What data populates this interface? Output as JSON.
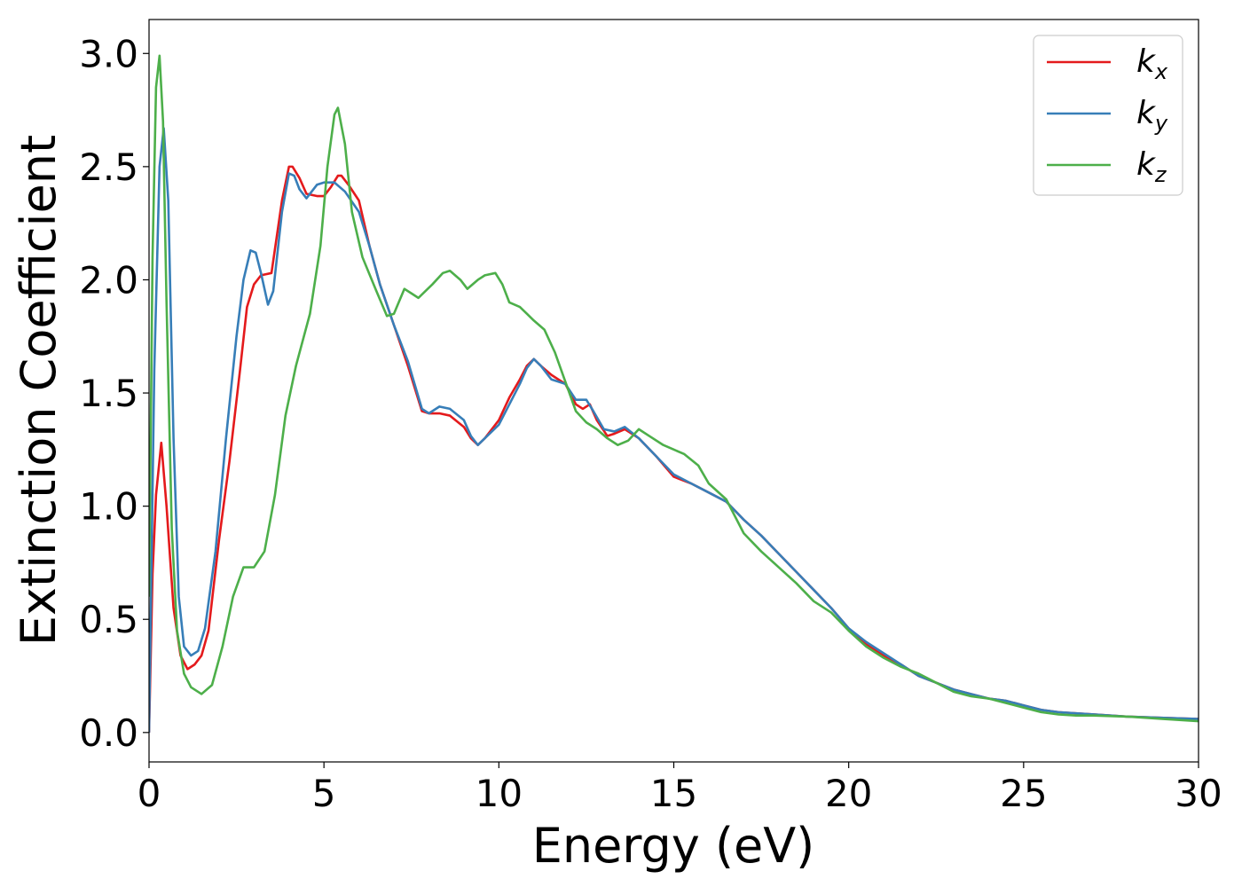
{
  "chart_data": {
    "type": "line",
    "title": "",
    "xlabel": "Energy (eV)",
    "ylabel": "Extinction Coefficient",
    "xlim": [
      0,
      30
    ],
    "ylim": [
      -0.13,
      3.15
    ],
    "xticks": [
      0,
      5,
      10,
      15,
      20,
      25,
      30
    ],
    "xtick_labels": [
      "0",
      "5",
      "10",
      "15",
      "20",
      "25",
      "30"
    ],
    "yticks": [
      0.0,
      0.5,
      1.0,
      1.5,
      2.0,
      2.5,
      3.0
    ],
    "ytick_labels": [
      "0.0",
      "0.5",
      "1.0",
      "1.5",
      "2.0",
      "2.5",
      "3.0"
    ],
    "grid": false,
    "legend_position": "top-right",
    "series": [
      {
        "name": "k_x",
        "label_base": "k",
        "label_sub": "x",
        "color": "#e41a1c",
        "points": [
          [
            0,
            0
          ],
          [
            0.1,
            0.7
          ],
          [
            0.2,
            1.05
          ],
          [
            0.35,
            1.28
          ],
          [
            0.5,
            1.0
          ],
          [
            0.7,
            0.55
          ],
          [
            0.9,
            0.34
          ],
          [
            1.1,
            0.28
          ],
          [
            1.3,
            0.3
          ],
          [
            1.5,
            0.34
          ],
          [
            1.7,
            0.45
          ],
          [
            2.0,
            0.85
          ],
          [
            2.3,
            1.2
          ],
          [
            2.6,
            1.6
          ],
          [
            2.8,
            1.88
          ],
          [
            3.0,
            1.98
          ],
          [
            3.2,
            2.02
          ],
          [
            3.5,
            2.03
          ],
          [
            3.8,
            2.35
          ],
          [
            4.0,
            2.5
          ],
          [
            4.1,
            2.5
          ],
          [
            4.3,
            2.45
          ],
          [
            4.5,
            2.38
          ],
          [
            4.8,
            2.37
          ],
          [
            5.0,
            2.37
          ],
          [
            5.2,
            2.41
          ],
          [
            5.4,
            2.46
          ],
          [
            5.5,
            2.46
          ],
          [
            5.7,
            2.42
          ],
          [
            6.0,
            2.35
          ],
          [
            6.3,
            2.15
          ],
          [
            6.6,
            1.98
          ],
          [
            7.0,
            1.8
          ],
          [
            7.4,
            1.62
          ],
          [
            7.8,
            1.42
          ],
          [
            8.0,
            1.41
          ],
          [
            8.3,
            1.41
          ],
          [
            8.6,
            1.4
          ],
          [
            9.0,
            1.35
          ],
          [
            9.2,
            1.3
          ],
          [
            9.4,
            1.27
          ],
          [
            9.6,
            1.3
          ],
          [
            10.0,
            1.38
          ],
          [
            10.3,
            1.48
          ],
          [
            10.6,
            1.56
          ],
          [
            10.8,
            1.62
          ],
          [
            11.0,
            1.65
          ],
          [
            11.2,
            1.62
          ],
          [
            11.5,
            1.58
          ],
          [
            11.9,
            1.54
          ],
          [
            12.2,
            1.45
          ],
          [
            12.4,
            1.43
          ],
          [
            12.6,
            1.45
          ],
          [
            12.8,
            1.38
          ],
          [
            13.1,
            1.31
          ],
          [
            13.3,
            1.32
          ],
          [
            13.6,
            1.34
          ],
          [
            14.0,
            1.3
          ],
          [
            14.5,
            1.22
          ],
          [
            15.0,
            1.13
          ],
          [
            15.5,
            1.1
          ],
          [
            16.0,
            1.06
          ],
          [
            16.5,
            1.02
          ],
          [
            17.0,
            0.94
          ],
          [
            17.5,
            0.87
          ],
          [
            18.0,
            0.79
          ],
          [
            18.5,
            0.71
          ],
          [
            19.0,
            0.63
          ],
          [
            19.5,
            0.55
          ],
          [
            20.0,
            0.46
          ],
          [
            20.5,
            0.39
          ],
          [
            21.0,
            0.34
          ],
          [
            21.5,
            0.3
          ],
          [
            22.0,
            0.25
          ],
          [
            22.5,
            0.22
          ],
          [
            23.0,
            0.19
          ],
          [
            23.5,
            0.17
          ],
          [
            24.0,
            0.15
          ],
          [
            24.5,
            0.14
          ],
          [
            25.0,
            0.12
          ],
          [
            25.5,
            0.1
          ],
          [
            26.0,
            0.09
          ],
          [
            27.0,
            0.08
          ],
          [
            28.0,
            0.07
          ],
          [
            29.0,
            0.065
          ],
          [
            30.0,
            0.06
          ]
        ]
      },
      {
        "name": "k_y",
        "label_base": "k",
        "label_sub": "y",
        "color": "#377eb8",
        "points": [
          [
            0,
            0
          ],
          [
            0.15,
            1.6
          ],
          [
            0.3,
            2.5
          ],
          [
            0.42,
            2.67
          ],
          [
            0.55,
            2.35
          ],
          [
            0.7,
            1.3
          ],
          [
            0.85,
            0.6
          ],
          [
            1.0,
            0.38
          ],
          [
            1.2,
            0.34
          ],
          [
            1.4,
            0.36
          ],
          [
            1.6,
            0.46
          ],
          [
            1.9,
            0.8
          ],
          [
            2.2,
            1.3
          ],
          [
            2.5,
            1.75
          ],
          [
            2.7,
            2.0
          ],
          [
            2.9,
            2.13
          ],
          [
            3.05,
            2.12
          ],
          [
            3.2,
            2.03
          ],
          [
            3.4,
            1.89
          ],
          [
            3.55,
            1.95
          ],
          [
            3.8,
            2.3
          ],
          [
            4.0,
            2.47
          ],
          [
            4.15,
            2.46
          ],
          [
            4.3,
            2.4
          ],
          [
            4.5,
            2.36
          ],
          [
            4.8,
            2.42
          ],
          [
            5.0,
            2.43
          ],
          [
            5.3,
            2.43
          ],
          [
            5.6,
            2.39
          ],
          [
            6.0,
            2.3
          ],
          [
            6.3,
            2.15
          ],
          [
            6.6,
            1.98
          ],
          [
            7.0,
            1.8
          ],
          [
            7.4,
            1.64
          ],
          [
            7.8,
            1.43
          ],
          [
            8.0,
            1.41
          ],
          [
            8.3,
            1.44
          ],
          [
            8.6,
            1.43
          ],
          [
            9.0,
            1.38
          ],
          [
            9.2,
            1.31
          ],
          [
            9.4,
            1.27
          ],
          [
            9.6,
            1.3
          ],
          [
            10.0,
            1.36
          ],
          [
            10.3,
            1.45
          ],
          [
            10.6,
            1.54
          ],
          [
            10.8,
            1.61
          ],
          [
            11.0,
            1.65
          ],
          [
            11.2,
            1.62
          ],
          [
            11.5,
            1.56
          ],
          [
            11.9,
            1.54
          ],
          [
            12.2,
            1.47
          ],
          [
            12.5,
            1.47
          ],
          [
            12.7,
            1.42
          ],
          [
            13.0,
            1.34
          ],
          [
            13.3,
            1.33
          ],
          [
            13.6,
            1.35
          ],
          [
            14.0,
            1.3
          ],
          [
            14.5,
            1.22
          ],
          [
            15.0,
            1.14
          ],
          [
            15.5,
            1.1
          ],
          [
            16.0,
            1.06
          ],
          [
            16.5,
            1.02
          ],
          [
            17.0,
            0.94
          ],
          [
            17.5,
            0.87
          ],
          [
            18.0,
            0.79
          ],
          [
            18.5,
            0.71
          ],
          [
            19.0,
            0.63
          ],
          [
            19.5,
            0.55
          ],
          [
            20.0,
            0.46
          ],
          [
            20.5,
            0.4
          ],
          [
            21.0,
            0.35
          ],
          [
            21.5,
            0.3
          ],
          [
            22.0,
            0.25
          ],
          [
            22.5,
            0.22
          ],
          [
            23.0,
            0.19
          ],
          [
            23.5,
            0.17
          ],
          [
            24.0,
            0.15
          ],
          [
            24.5,
            0.14
          ],
          [
            25.0,
            0.12
          ],
          [
            25.5,
            0.1
          ],
          [
            26.0,
            0.09
          ],
          [
            27.0,
            0.08
          ],
          [
            28.0,
            0.07
          ],
          [
            29.0,
            0.065
          ],
          [
            30.0,
            0.06
          ]
        ]
      },
      {
        "name": "k_z",
        "label_base": "k",
        "label_sub": "z",
        "color": "#4daf4a",
        "points": [
          [
            0,
            0.6
          ],
          [
            0.1,
            2.1
          ],
          [
            0.2,
            2.85
          ],
          [
            0.3,
            2.99
          ],
          [
            0.4,
            2.7
          ],
          [
            0.5,
            1.9
          ],
          [
            0.65,
            0.9
          ],
          [
            0.8,
            0.45
          ],
          [
            1.0,
            0.26
          ],
          [
            1.2,
            0.2
          ],
          [
            1.5,
            0.17
          ],
          [
            1.8,
            0.21
          ],
          [
            2.1,
            0.38
          ],
          [
            2.4,
            0.6
          ],
          [
            2.7,
            0.73
          ],
          [
            3.0,
            0.73
          ],
          [
            3.3,
            0.8
          ],
          [
            3.6,
            1.05
          ],
          [
            3.9,
            1.4
          ],
          [
            4.2,
            1.62
          ],
          [
            4.6,
            1.85
          ],
          [
            4.9,
            2.15
          ],
          [
            5.1,
            2.5
          ],
          [
            5.3,
            2.73
          ],
          [
            5.4,
            2.76
          ],
          [
            5.6,
            2.6
          ],
          [
            5.8,
            2.3
          ],
          [
            6.1,
            2.1
          ],
          [
            6.5,
            1.95
          ],
          [
            6.8,
            1.84
          ],
          [
            7.0,
            1.85
          ],
          [
            7.3,
            1.96
          ],
          [
            7.5,
            1.94
          ],
          [
            7.7,
            1.92
          ],
          [
            7.9,
            1.95
          ],
          [
            8.1,
            1.98
          ],
          [
            8.4,
            2.03
          ],
          [
            8.6,
            2.04
          ],
          [
            8.9,
            2.0
          ],
          [
            9.1,
            1.96
          ],
          [
            9.4,
            2.0
          ],
          [
            9.6,
            2.02
          ],
          [
            9.9,
            2.03
          ],
          [
            10.1,
            1.98
          ],
          [
            10.3,
            1.9
          ],
          [
            10.6,
            1.88
          ],
          [
            10.8,
            1.85
          ],
          [
            11.0,
            1.82
          ],
          [
            11.3,
            1.78
          ],
          [
            11.6,
            1.68
          ],
          [
            11.9,
            1.55
          ],
          [
            12.2,
            1.42
          ],
          [
            12.5,
            1.37
          ],
          [
            12.8,
            1.34
          ],
          [
            13.1,
            1.3
          ],
          [
            13.4,
            1.27
          ],
          [
            13.7,
            1.29
          ],
          [
            14.0,
            1.34
          ],
          [
            14.3,
            1.31
          ],
          [
            14.7,
            1.27
          ],
          [
            15.0,
            1.25
          ],
          [
            15.3,
            1.23
          ],
          [
            15.7,
            1.18
          ],
          [
            16.0,
            1.1
          ],
          [
            16.5,
            1.03
          ],
          [
            17.0,
            0.88
          ],
          [
            17.5,
            0.8
          ],
          [
            18.0,
            0.73
          ],
          [
            18.5,
            0.66
          ],
          [
            19.0,
            0.58
          ],
          [
            19.5,
            0.53
          ],
          [
            20.0,
            0.45
          ],
          [
            20.5,
            0.38
          ],
          [
            21.0,
            0.33
          ],
          [
            21.5,
            0.29
          ],
          [
            22.0,
            0.26
          ],
          [
            22.5,
            0.22
          ],
          [
            23.0,
            0.18
          ],
          [
            23.5,
            0.16
          ],
          [
            24.0,
            0.15
          ],
          [
            24.5,
            0.13
          ],
          [
            25.0,
            0.11
          ],
          [
            25.5,
            0.09
          ],
          [
            26.0,
            0.08
          ],
          [
            26.5,
            0.075
          ],
          [
            27.0,
            0.075
          ],
          [
            28.0,
            0.07
          ],
          [
            29.0,
            0.06
          ],
          [
            30.0,
            0.05
          ]
        ]
      }
    ]
  }
}
